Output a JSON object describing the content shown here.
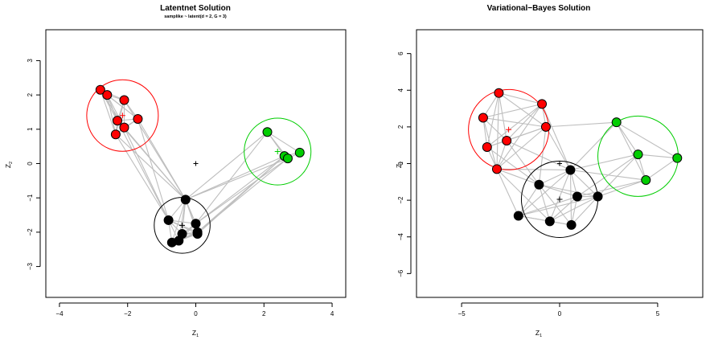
{
  "chart_data": [
    {
      "type": "scatter",
      "title": "Latentnet Solution",
      "subtitle": "samplike ~ latent(d = 2, G = 3)",
      "xlabel": "Z",
      "xlabel_sub": "1",
      "ylabel": "Z",
      "ylabel_sub": "2",
      "xlim": [
        -4.4,
        4.4
      ],
      "ylim": [
        -3.9,
        3.9
      ],
      "xticks": [
        -4,
        -2,
        0,
        2,
        4
      ],
      "xtick_labels": [
        "−4",
        "−2",
        "0",
        "2",
        "4"
      ],
      "yticks": [
        -3,
        -2,
        -1,
        0,
        1,
        2,
        3
      ],
      "ytick_labels": [
        "−3",
        "−2",
        "−1",
        "0",
        "1",
        "2",
        "3"
      ],
      "grid": false,
      "legend": "none",
      "edge_color": "#bebebe",
      "series": [
        {
          "color": "#ff0000",
          "points": [
            [
              -2.8,
              2.15
            ],
            [
              -2.6,
              2.0
            ],
            [
              -2.1,
              1.85
            ],
            [
              -2.3,
              1.25
            ],
            [
              -1.7,
              1.3
            ],
            [
              -2.1,
              1.05
            ],
            [
              -2.35,
              0.85
            ]
          ]
        },
        {
          "color": "#00cd00",
          "points": [
            [
              2.1,
              0.92
            ],
            [
              3.05,
              0.32
            ],
            [
              2.6,
              0.22
            ],
            [
              2.7,
              0.15
            ]
          ]
        },
        {
          "color": "#000000",
          "points": [
            [
              -0.3,
              -1.05
            ],
            [
              -0.8,
              -1.65
            ],
            [
              0.0,
              -1.75
            ],
            [
              -0.4,
              -2.05
            ],
            [
              0.05,
              -2.0
            ],
            [
              -0.5,
              -2.25
            ],
            [
              -0.7,
              -2.3
            ],
            [
              0.05,
              -2.05
            ]
          ]
        }
      ],
      "clusters": [
        {
          "color": "#ff0000",
          "center": [
            -2.15,
            1.4
          ],
          "radius": 1.05
        },
        {
          "color": "#00cd00",
          "center": [
            2.4,
            0.35
          ],
          "radius": 0.98
        },
        {
          "color": "#000000",
          "center": [
            -0.4,
            -1.8
          ],
          "radius": 0.82
        }
      ],
      "center_marker": [
        0.0,
        0.0
      ]
    },
    {
      "type": "scatter",
      "title": "Variational−Bayes Solution",
      "subtitle": "",
      "xlabel": "Z",
      "xlabel_sub": "1",
      "ylabel": "Z",
      "ylabel_sub": "2",
      "xlim": [
        -7.3,
        7.3
      ],
      "ylim": [
        -7.3,
        7.3
      ],
      "xticks": [
        -5,
        0,
        5
      ],
      "xtick_labels": [
        "−5",
        "0",
        "5"
      ],
      "yticks": [
        -6,
        -4,
        -2,
        0,
        2,
        4,
        6
      ],
      "ytick_labels": [
        "−6",
        "−4",
        "−2",
        "0",
        "2",
        "4",
        "6"
      ],
      "grid": false,
      "legend": "none",
      "edge_color": "#bebebe",
      "series": [
        {
          "color": "#ff0000",
          "points": [
            [
              -3.1,
              3.85
            ],
            [
              -0.9,
              3.25
            ],
            [
              -3.9,
              2.5
            ],
            [
              -0.7,
              2.0
            ],
            [
              -2.7,
              1.25
            ],
            [
              -3.7,
              0.9
            ],
            [
              -3.2,
              -0.3
            ]
          ]
        },
        {
          "color": "#00cd00",
          "points": [
            [
              2.9,
              2.25
            ],
            [
              4.0,
              0.5
            ],
            [
              6.0,
              0.3
            ],
            [
              4.4,
              -0.9
            ]
          ]
        },
        {
          "color": "#000000",
          "points": [
            [
              0.55,
              -0.35
            ],
            [
              -1.05,
              -1.15
            ],
            [
              0.9,
              -1.8
            ],
            [
              1.95,
              -1.8
            ],
            [
              -2.1,
              -2.85
            ],
            [
              -0.5,
              -3.15
            ],
            [
              0.6,
              -3.35
            ]
          ]
        }
      ],
      "clusters": [
        {
          "color": "#ff0000",
          "center": [
            -2.6,
            1.85
          ],
          "radius": 2.05
        },
        {
          "color": "#00cd00",
          "center": [
            4.0,
            0.4
          ],
          "radius": 2.05
        },
        {
          "color": "#000000",
          "center": [
            0.0,
            -1.95
          ],
          "radius": 1.95
        }
      ],
      "center_marker": [
        0.0,
        0.0
      ]
    }
  ]
}
